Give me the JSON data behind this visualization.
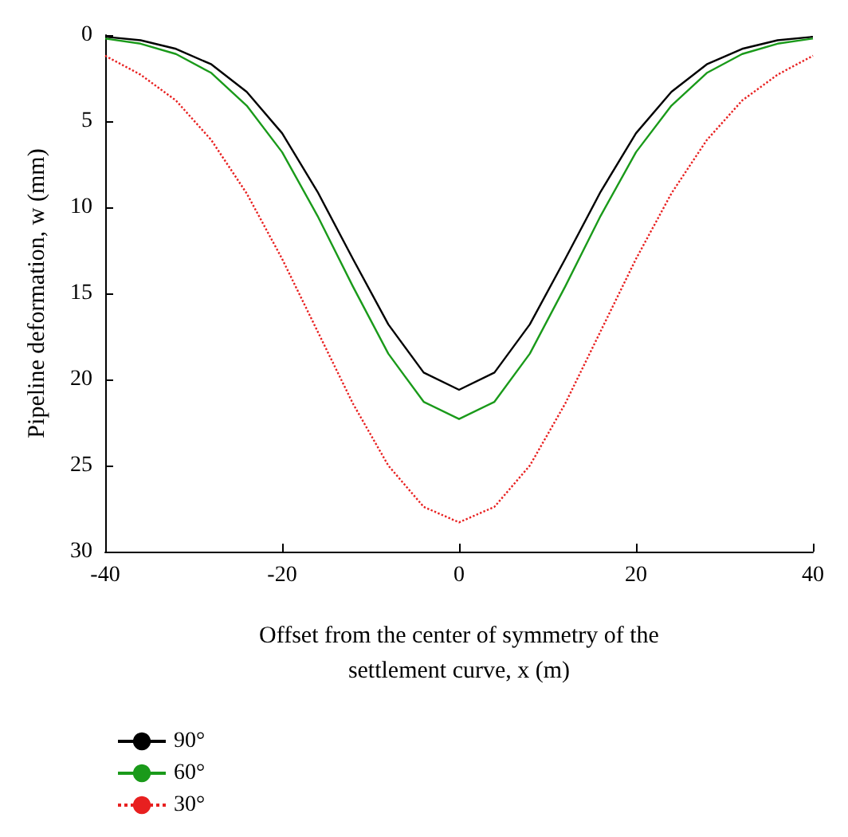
{
  "chart_data": {
    "type": "line",
    "xlabel": "Offset from the center of symmetry of the\nsettlement curve, x (m)",
    "ylabel": "Pipeline deformation, w (mm)",
    "x": [
      -40,
      -36,
      -32,
      -28,
      -24,
      -20,
      -16,
      -12,
      -8,
      -4,
      0,
      4,
      8,
      12,
      16,
      20,
      24,
      28,
      32,
      36,
      40
    ],
    "series": [
      {
        "name": "90°",
        "color": "#000000",
        "line_style": "solid",
        "values": [
          0.1,
          0.3,
          0.8,
          1.7,
          3.3,
          5.7,
          9.1,
          13.0,
          16.8,
          19.6,
          20.6,
          19.6,
          16.8,
          13.0,
          9.1,
          5.7,
          3.3,
          1.7,
          0.8,
          0.3,
          0.1
        ]
      },
      {
        "name": "60°",
        "color": "#1a9a1a",
        "line_style": "solid",
        "values": [
          0.2,
          0.5,
          1.1,
          2.2,
          4.1,
          6.8,
          10.5,
          14.6,
          18.5,
          21.3,
          22.3,
          21.3,
          18.5,
          14.6,
          10.5,
          6.8,
          4.1,
          2.2,
          1.1,
          0.5,
          0.2
        ]
      },
      {
        "name": "30°",
        "color": "#e82020",
        "line_style": "dotted",
        "values": [
          1.2,
          2.3,
          3.8,
          6.1,
          9.2,
          13.0,
          17.2,
          21.4,
          25.0,
          27.4,
          28.3,
          27.4,
          25.0,
          21.4,
          17.2,
          13.0,
          9.2,
          6.1,
          3.8,
          2.3,
          1.2
        ]
      }
    ],
    "xlim": [
      -40,
      40
    ],
    "xticks": [
      -40,
      -20,
      0,
      20,
      40
    ],
    "ylim": [
      30,
      0
    ],
    "yticks": [
      0,
      5,
      10,
      15,
      20,
      25,
      30
    ],
    "grid": false,
    "legend": "bottom left",
    "marker": "none"
  }
}
